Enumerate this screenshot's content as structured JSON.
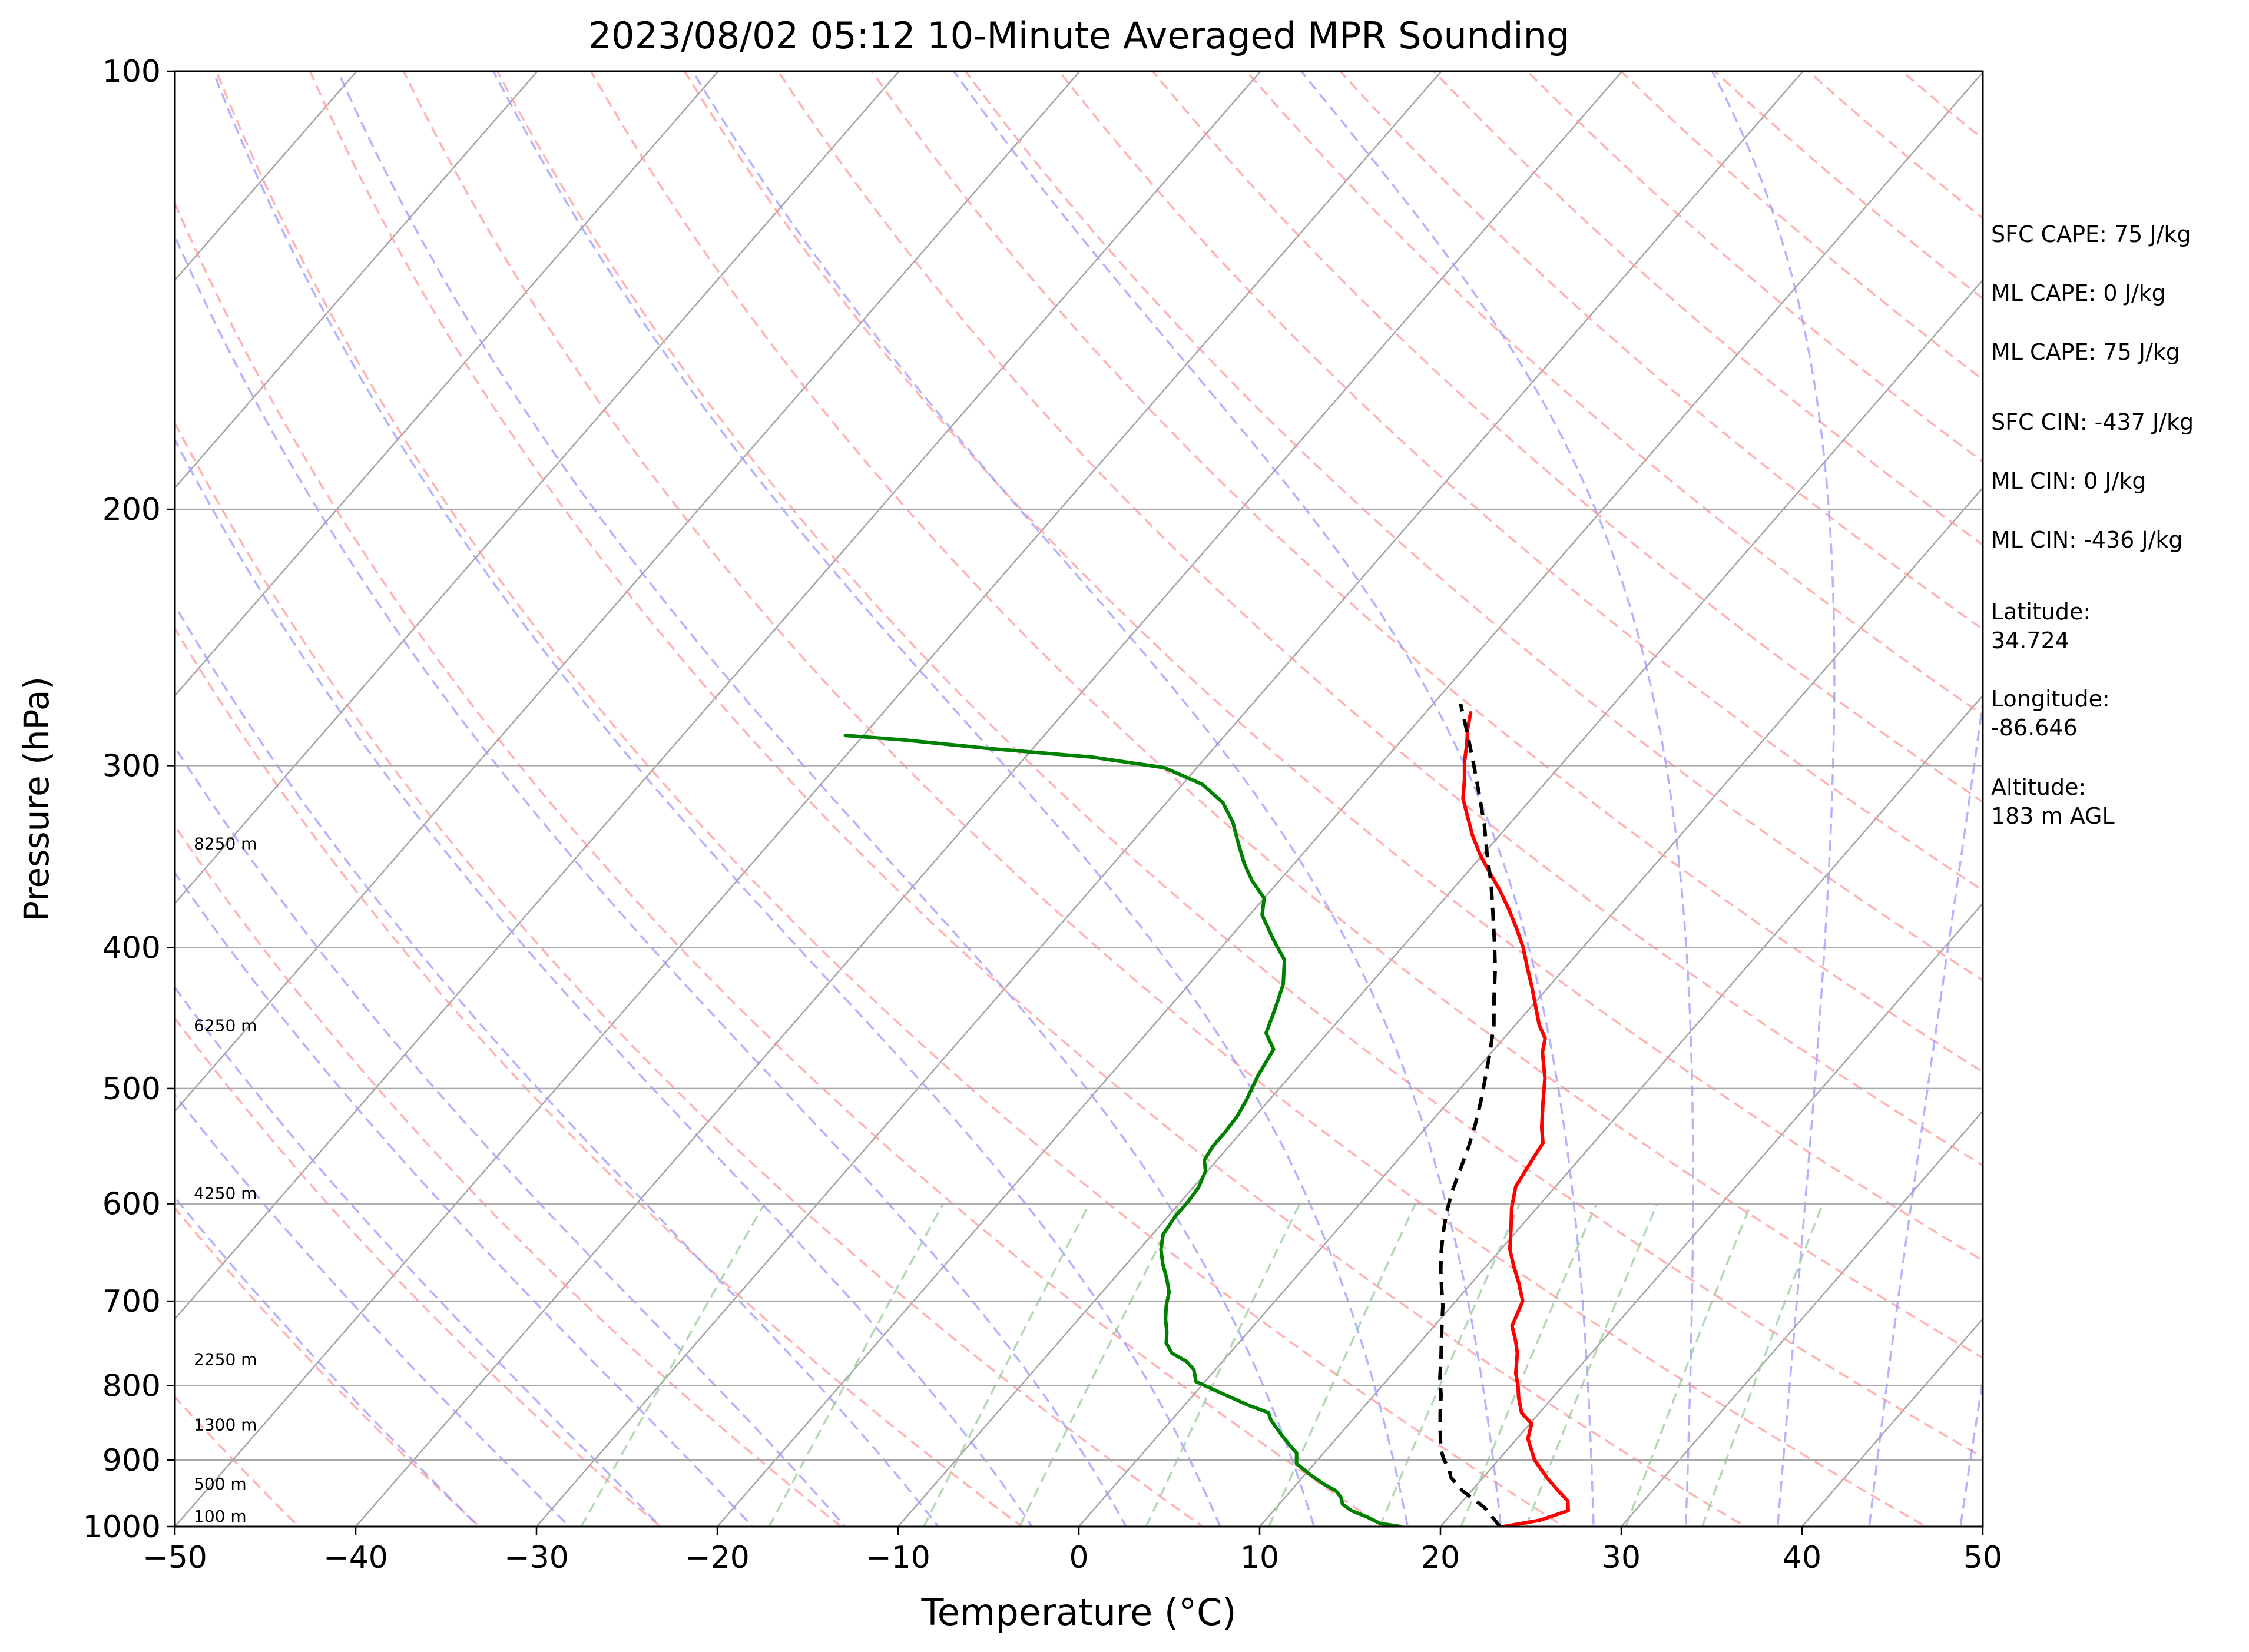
{
  "chart_data": {
    "type": "line",
    "title": "2023/08/02 05:12 10-Minute Averaged MPR Sounding",
    "xlabel": "Temperature (°C)",
    "ylabel": "Pressure (hPa)",
    "xlim": [
      -50,
      50
    ],
    "ylim": [
      1000,
      100
    ],
    "y_scale": "log",
    "y_inverted": true,
    "x_ticks": [
      "−50",
      "−40",
      "−30",
      "−20",
      "−10",
      "0",
      "10",
      "20",
      "30",
      "40",
      "50"
    ],
    "y_ticks": [
      100,
      200,
      300,
      400,
      500,
      600,
      700,
      800,
      900,
      1000
    ],
    "grid": "pressure gridlines on",
    "height_labels": [
      {
        "p": 1000,
        "text": "100 m"
      },
      {
        "p": 950,
        "text": "500 m"
      },
      {
        "p": 865,
        "text": "1300 m"
      },
      {
        "p": 780,
        "text": "2250 m"
      },
      {
        "p": 600,
        "text": "4250 m"
      },
      {
        "p": 460,
        "text": "6250 m"
      },
      {
        "p": 345,
        "text": "8250 m"
      }
    ],
    "info_text": [
      "SFC CAPE: 75 J/kg",
      "ML CAPE: 0 J/kg",
      "ML CAPE: 75 J/kg",
      "SFC CIN: -437 J/kg",
      "ML CIN: 0 J/kg",
      "ML CIN: -436 J/kg",
      "Latitude:",
      "34.724",
      "Longitude:",
      "-86.646",
      "Altitude:",
      "183 m AGL"
    ],
    "colors": {
      "temperature": "#ff0000",
      "dewpoint": "#008000",
      "parcel": "#000000",
      "isotherms": "#808080",
      "dry_adiabats": "#ff9999",
      "moist_adiabats": "#9999ff",
      "mixing_ratio": "#99cc99",
      "isobars": "#aaaaaa"
    },
    "series": [
      {
        "key": "temperature",
        "points": [
          [
            23.5,
            1000
          ],
          [
            25.2,
            990
          ],
          [
            26.3,
            975
          ],
          [
            25.8,
            960
          ],
          [
            24.8,
            945
          ],
          [
            23.5,
            925
          ],
          [
            22.0,
            900
          ],
          [
            20.6,
            870
          ],
          [
            20.1,
            850
          ],
          [
            19.0,
            835
          ],
          [
            18.1,
            815
          ],
          [
            17.5,
            800
          ],
          [
            16.8,
            785
          ],
          [
            15.9,
            760
          ],
          [
            15.2,
            745
          ],
          [
            14.3,
            728
          ],
          [
            13.7,
            700
          ],
          [
            12.6,
            680
          ],
          [
            11.5,
            662
          ],
          [
            10.5,
            645
          ],
          [
            9.6,
            625
          ],
          [
            8.6,
            604
          ],
          [
            7.8,
            584
          ],
          [
            7.5,
            565
          ],
          [
            7.2,
            545
          ],
          [
            6.4,
            532
          ],
          [
            5.3,
            512
          ],
          [
            4.2,
            492
          ],
          [
            2.8,
            472
          ],
          [
            2.3,
            462
          ],
          [
            1.3,
            452
          ],
          [
            0.3,
            440
          ],
          [
            -0.9,
            426
          ],
          [
            -2.1,
            413
          ],
          [
            -3.3,
            400
          ],
          [
            -4.6,
            388
          ],
          [
            -6.0,
            376
          ],
          [
            -7.4,
            365
          ],
          [
            -8.8,
            355
          ],
          [
            -10.2,
            345
          ],
          [
            -11.5,
            335
          ],
          [
            -12.7,
            325
          ],
          [
            -13.8,
            316
          ],
          [
            -14.6,
            307
          ],
          [
            -15.5,
            298
          ],
          [
            -16.2,
            290
          ],
          [
            -16.9,
            283
          ],
          [
            -17.5,
            276
          ]
        ]
      },
      {
        "key": "dewpoint",
        "points": [
          [
            17.8,
            1000
          ],
          [
            16.5,
            995
          ],
          [
            15.5,
            985
          ],
          [
            14.3,
            975
          ],
          [
            13.5,
            965
          ],
          [
            13.1,
            955
          ],
          [
            12.5,
            945
          ],
          [
            11.5,
            935
          ],
          [
            10.2,
            920
          ],
          [
            9.0,
            905
          ],
          [
            8.5,
            890
          ],
          [
            7.8,
            880
          ],
          [
            6.8,
            865
          ],
          [
            5.5,
            845
          ],
          [
            5.0,
            835
          ],
          [
            3.5,
            825
          ],
          [
            1.5,
            810
          ],
          [
            -0.5,
            795
          ],
          [
            -1.2,
            780
          ],
          [
            -2.0,
            770
          ],
          [
            -3.2,
            760
          ],
          [
            -4.0,
            748
          ],
          [
            -4.5,
            735
          ],
          [
            -5.2,
            720
          ],
          [
            -5.8,
            705
          ],
          [
            -6.3,
            690
          ],
          [
            -7.1,
            675
          ],
          [
            -8.0,
            660
          ],
          [
            -8.8,
            645
          ],
          [
            -9.4,
            630
          ],
          [
            -9.6,
            612
          ],
          [
            -9.6,
            598
          ],
          [
            -9.7,
            585
          ],
          [
            -10.1,
            570
          ],
          [
            -10.7,
            560
          ],
          [
            -10.9,
            548
          ],
          [
            -10.9,
            535
          ],
          [
            -11.0,
            522
          ],
          [
            -11.3,
            508
          ],
          [
            -11.8,
            490
          ],
          [
            -12.2,
            470
          ],
          [
            -13.4,
            458
          ],
          [
            -14.1,
            440
          ],
          [
            -14.8,
            424
          ],
          [
            -15.9,
            408
          ],
          [
            -17.5,
            395
          ],
          [
            -19.3,
            380
          ],
          [
            -20.0,
            370
          ],
          [
            -21.5,
            360
          ],
          [
            -22.8,
            350
          ],
          [
            -24.1,
            339
          ],
          [
            -25.4,
            328
          ],
          [
            -26.9,
            318
          ],
          [
            -28.9,
            309
          ],
          [
            -31.8,
            301
          ],
          [
            -36.3,
            296
          ],
          [
            -42.4,
            292
          ],
          [
            -47.6,
            288
          ],
          [
            -51.0,
            286
          ]
        ]
      },
      {
        "key": "parcel",
        "dashed": true,
        "points": [
          [
            23.3,
            1000
          ],
          [
            21.5,
            970
          ],
          [
            19.5,
            945
          ],
          [
            18.2,
            925
          ],
          [
            17.8,
            915
          ],
          [
            17.0,
            900
          ],
          [
            16.3,
            885
          ],
          [
            15.4,
            860
          ],
          [
            14.5,
            835
          ],
          [
            13.7,
            812
          ],
          [
            12.8,
            790
          ],
          [
            12.0,
            768
          ],
          [
            11.1,
            745
          ],
          [
            10.3,
            725
          ],
          [
            9.5,
            705
          ],
          [
            8.6,
            686
          ],
          [
            7.7,
            667
          ],
          [
            6.8,
            647
          ],
          [
            6.0,
            628
          ],
          [
            5.2,
            608
          ],
          [
            4.5,
            588
          ],
          [
            3.9,
            568
          ],
          [
            3.3,
            549
          ],
          [
            2.6,
            530
          ],
          [
            1.8,
            511
          ],
          [
            0.9,
            492
          ],
          [
            -0.1,
            472
          ],
          [
            -1.2,
            452
          ],
          [
            -2.5,
            433
          ],
          [
            -3.8,
            414
          ],
          [
            -5.2,
            396
          ],
          [
            -6.7,
            378
          ],
          [
            -8.2,
            361
          ],
          [
            -9.8,
            345
          ],
          [
            -11.4,
            329
          ],
          [
            -13.1,
            314
          ],
          [
            -14.9,
            299
          ],
          [
            -16.7,
            285
          ],
          [
            -18.5,
            272
          ]
        ]
      }
    ]
  }
}
